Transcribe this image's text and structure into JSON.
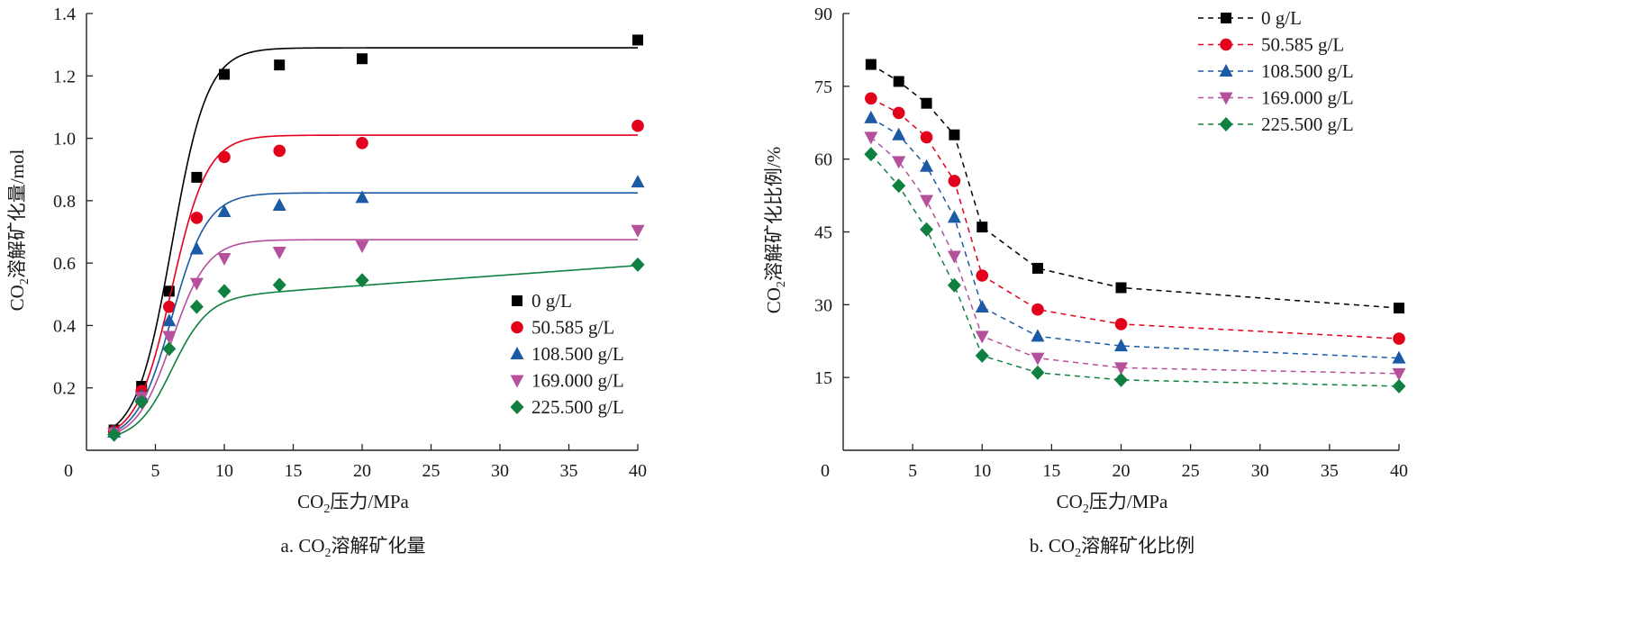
{
  "chart_data": [
    {
      "panel": "a",
      "type": "scatter",
      "caption": "a. CO₂溶解矿化量",
      "xlabel": "CO₂压力/MPa",
      "ylabel": "CO₂溶解矿化量/mol",
      "xlim": [
        0,
        40
      ],
      "ylim": [
        0,
        1.4
      ],
      "xticks": [
        "0",
        "5",
        "10",
        "15",
        "20",
        "25",
        "30",
        "35",
        "40"
      ],
      "yticks": [
        "0.2",
        "0.4",
        "0.6",
        "0.8",
        "1.0",
        "1.2",
        "1.4"
      ],
      "fit_curves": true,
      "legend_position": "bottom-right",
      "x": [
        2,
        4,
        6,
        8,
        10,
        14,
        20,
        40
      ],
      "series": [
        {
          "name": "0 g/L",
          "marker": "square",
          "color": "#000000",
          "values": [
            0.065,
            0.205,
            0.51,
            0.875,
            1.205,
            1.235,
            1.255,
            1.315
          ],
          "plateau": 1.29
        },
        {
          "name": "50.585 g/L",
          "marker": "circle",
          "color": "#e3001b",
          "values": [
            0.06,
            0.19,
            0.46,
            0.745,
            0.94,
            0.96,
            0.985,
            1.04
          ],
          "plateau": 1.01
        },
        {
          "name": "108.500 g/L",
          "marker": "triangle-up",
          "color": "#1b5aa5",
          "values": [
            0.058,
            0.175,
            0.415,
            0.645,
            0.765,
            0.785,
            0.81,
            0.86
          ],
          "plateau": 0.825
        },
        {
          "name": "169.000 g/L",
          "marker": "triangle-down",
          "color": "#b4509c",
          "values": [
            0.055,
            0.17,
            0.365,
            0.535,
            0.615,
            0.635,
            0.655,
            0.705
          ],
          "plateau": 0.675
        },
        {
          "name": "225.500 g/L",
          "marker": "diamond",
          "color": "#108040",
          "values": [
            0.05,
            0.155,
            0.325,
            0.46,
            0.51,
            0.53,
            0.545,
            0.595
          ],
          "plateau": 0.52
        }
      ]
    },
    {
      "panel": "b",
      "type": "line",
      "caption": "b. CO₂溶解矿化比例",
      "xlabel": "CO₂压力/MPa",
      "ylabel": "CO₂溶解矿化比例/%",
      "xlim": [
        0,
        40
      ],
      "ylim": [
        0,
        90
      ],
      "xticks": [
        "0",
        "5",
        "10",
        "15",
        "20",
        "25",
        "30",
        "35",
        "40"
      ],
      "yticks": [
        "15",
        "30",
        "45",
        "60",
        "75",
        "90"
      ],
      "line_style": "dashed",
      "legend_position": "top-right",
      "x": [
        2,
        4,
        6,
        8,
        10,
        14,
        20,
        40
      ],
      "series": [
        {
          "name": "0 g/L",
          "marker": "square",
          "color": "#000000",
          "values": [
            79.5,
            76,
            71.5,
            65,
            46,
            37.5,
            33.5,
            29.3
          ]
        },
        {
          "name": "50.585 g/L",
          "marker": "circle",
          "color": "#e3001b",
          "values": [
            72.5,
            69.5,
            64.5,
            55.5,
            36,
            29,
            26,
            23
          ]
        },
        {
          "name": "108.500 g/L",
          "marker": "triangle-up",
          "color": "#1b5aa5",
          "values": [
            68.5,
            65,
            58.5,
            48,
            29.5,
            23.5,
            21.5,
            19
          ]
        },
        {
          "name": "169.000 g/L",
          "marker": "triangle-down",
          "color": "#b4509c",
          "values": [
            64.5,
            59.5,
            51.5,
            40,
            23.5,
            19,
            17,
            15.8
          ]
        },
        {
          "name": "225.500 g/L",
          "marker": "diamond",
          "color": "#108040",
          "values": [
            61,
            54.5,
            45.5,
            34,
            19.5,
            16,
            14.5,
            13.2
          ]
        }
      ]
    }
  ]
}
